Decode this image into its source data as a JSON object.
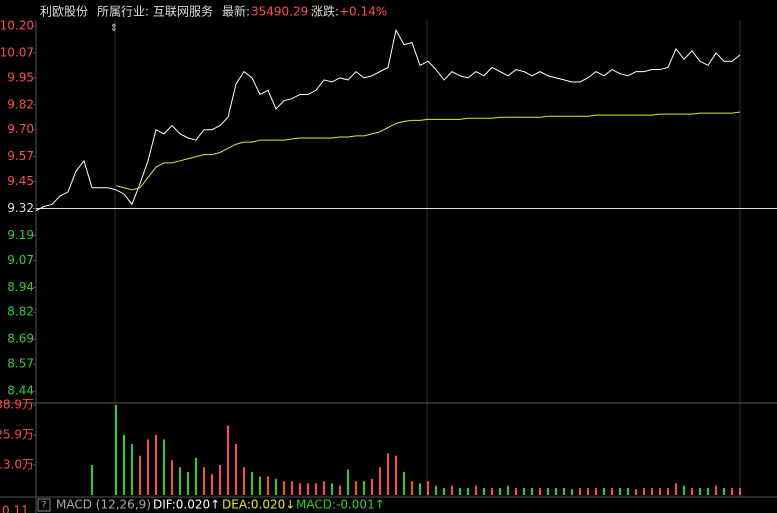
{
  "header": {
    "name": "利欧股份",
    "industry_label": "所属行业:",
    "industry": "互联网服务",
    "latest_label": "最新:",
    "latest": "35490.29",
    "change_label": "涨跌:",
    "change": "+0.14%"
  },
  "chart_data": {
    "type": "line",
    "ylim": [
      8.44,
      10.2
    ],
    "yticks": [
      {
        "value": 10.2,
        "label": "10.20"
      },
      10.07,
      9.95,
      9.82,
      {
        "value": 9.7,
        "label": "9.70"
      },
      9.57,
      9.45,
      9.32,
      9.19,
      9.07,
      8.94,
      8.82,
      8.69,
      8.57,
      8.44
    ],
    "prev_close": 9.32,
    "up_color": "#ff4d4d",
    "down_color": "#33cc33",
    "series": [
      {
        "color": "#ffffff",
        "values": [
          9.31,
          9.33,
          9.34,
          9.38,
          9.4,
          9.5,
          9.55,
          9.42,
          9.42,
          9.42,
          9.41,
          9.39,
          9.34,
          9.44,
          9.55,
          9.7,
          9.68,
          9.72,
          9.68,
          9.66,
          9.65,
          9.7,
          9.7,
          9.72,
          9.76,
          9.92,
          9.98,
          9.95,
          9.87,
          9.89,
          9.8,
          9.84,
          9.85,
          9.87,
          9.87,
          9.89,
          9.94,
          9.93,
          9.95,
          9.94,
          9.98,
          9.95,
          9.96,
          9.98,
          10.0,
          10.18,
          10.11,
          10.12,
          10.01,
          10.03,
          9.99,
          9.94,
          9.98,
          9.96,
          9.95,
          9.98,
          9.96,
          10.0,
          9.98,
          9.96,
          9.99,
          9.98,
          9.96,
          9.98,
          9.96,
          9.95,
          9.94,
          9.93,
          9.93,
          9.95,
          9.98,
          9.96,
          9.99,
          9.97,
          9.96,
          9.98,
          9.98,
          9.99,
          9.99,
          10.0,
          10.09,
          10.04,
          10.08,
          10.03,
          10.01,
          10.07,
          10.03,
          10.03,
          10.06
        ]
      },
      {
        "color": "#e6e62e",
        "values": [
          null,
          null,
          null,
          null,
          null,
          null,
          null,
          null,
          null,
          null,
          9.43,
          9.42,
          9.41,
          9.42,
          9.47,
          9.52,
          9.54,
          9.54,
          9.55,
          9.56,
          9.57,
          9.58,
          9.58,
          9.59,
          9.61,
          9.63,
          9.64,
          9.64,
          9.65,
          9.65,
          9.65,
          9.65,
          9.655,
          9.66,
          9.66,
          9.66,
          9.66,
          9.66,
          9.665,
          9.665,
          9.67,
          9.67,
          9.68,
          9.69,
          9.71,
          9.73,
          9.74,
          9.745,
          9.745,
          9.75,
          9.75,
          9.75,
          9.75,
          9.75,
          9.755,
          9.755,
          9.755,
          9.755,
          9.76,
          9.76,
          9.76,
          9.76,
          9.76,
          9.76,
          9.765,
          9.765,
          9.765,
          9.765,
          9.765,
          9.765,
          9.77,
          9.77,
          9.77,
          9.77,
          9.77,
          9.77,
          9.77,
          9.77,
          9.775,
          9.775,
          9.775,
          9.775,
          9.775,
          9.78,
          9.78,
          9.78,
          9.78,
          9.78,
          9.785
        ]
      }
    ],
    "volume": {
      "ylim": [
        0,
        38.9
      ],
      "yticks": [
        {
          "value": 38.9,
          "label": "38.9万"
        },
        {
          "value": 25.9,
          "label": "25.9万"
        },
        {
          "value": 13.0,
          "label": "13.0万"
        }
      ],
      "values": [
        0,
        0,
        0,
        0,
        0,
        0,
        0,
        13.0,
        0,
        0,
        38.9,
        26,
        22,
        17,
        24,
        26,
        24,
        15,
        12,
        10,
        16,
        12,
        9,
        13,
        30,
        22,
        12,
        10,
        8,
        8,
        7,
        6,
        6,
        5,
        5,
        5,
        6,
        5,
        4,
        11,
        6,
        6,
        7,
        12,
        18,
        17,
        10,
        6,
        5,
        6,
        4,
        3,
        4,
        3,
        3,
        4,
        3,
        3,
        3,
        4,
        3,
        3,
        3,
        3,
        3,
        3,
        3,
        2.5,
        3,
        3,
        3,
        3,
        3,
        3,
        3,
        2.5,
        3,
        3,
        3,
        3,
        5,
        4,
        3,
        3,
        3,
        4,
        3,
        3,
        3
      ]
    },
    "macd": {
      "axis_label": "0.11",
      "title": "MACD (12,26,9)",
      "dif": "DIF:0.020↑",
      "dea": "DEA:0.020↓",
      "macd": "MACD:-0.001↑"
    }
  }
}
